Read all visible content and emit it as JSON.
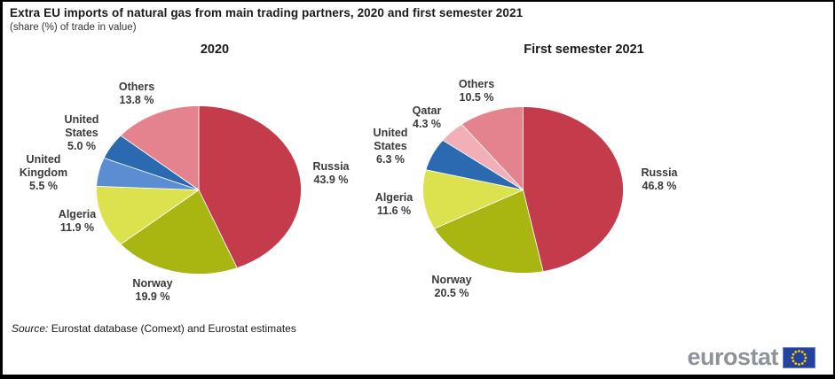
{
  "title": "Extra EU imports of natural gas from main trading partners, 2020 and first semester 2021",
  "subtitle": "(share (%) of trade in value)",
  "source": {
    "label": "Source:",
    "text": "Eurostat database (Comext) and Eurostat estimates"
  },
  "logo": {
    "text": "eurostat",
    "flag_icon": "eu-flag",
    "flag_blue": "#26439c",
    "star_yellow": "#ffcc00"
  },
  "chart_data": [
    {
      "type": "pie",
      "title": "2020",
      "labels": [
        "Russia",
        "Norway",
        "Algeria",
        "United Kingdom",
        "United States",
        "Others"
      ],
      "values": [
        43.9,
        19.9,
        11.9,
        5.5,
        5.0,
        13.8
      ],
      "colors": [
        "#c43b4c",
        "#a9b511",
        "#dce24e",
        "#5b8dd3",
        "#2b69b1",
        "#e4838e"
      ],
      "unit": "%",
      "start_angle": "top",
      "direction": "clockwise",
      "label_position": "outside"
    },
    {
      "type": "pie",
      "title": "First semester 2021",
      "labels": [
        "Russia",
        "Norway",
        "Algeria",
        "United States",
        "Qatar",
        "Others"
      ],
      "values": [
        46.8,
        20.5,
        11.6,
        6.3,
        4.3,
        10.5
      ],
      "colors": [
        "#c43b4c",
        "#a9b511",
        "#dce24e",
        "#2b69b1",
        "#f2afb8",
        "#e4838e"
      ],
      "unit": "%",
      "start_angle": "top",
      "direction": "clockwise",
      "label_position": "outside"
    }
  ]
}
